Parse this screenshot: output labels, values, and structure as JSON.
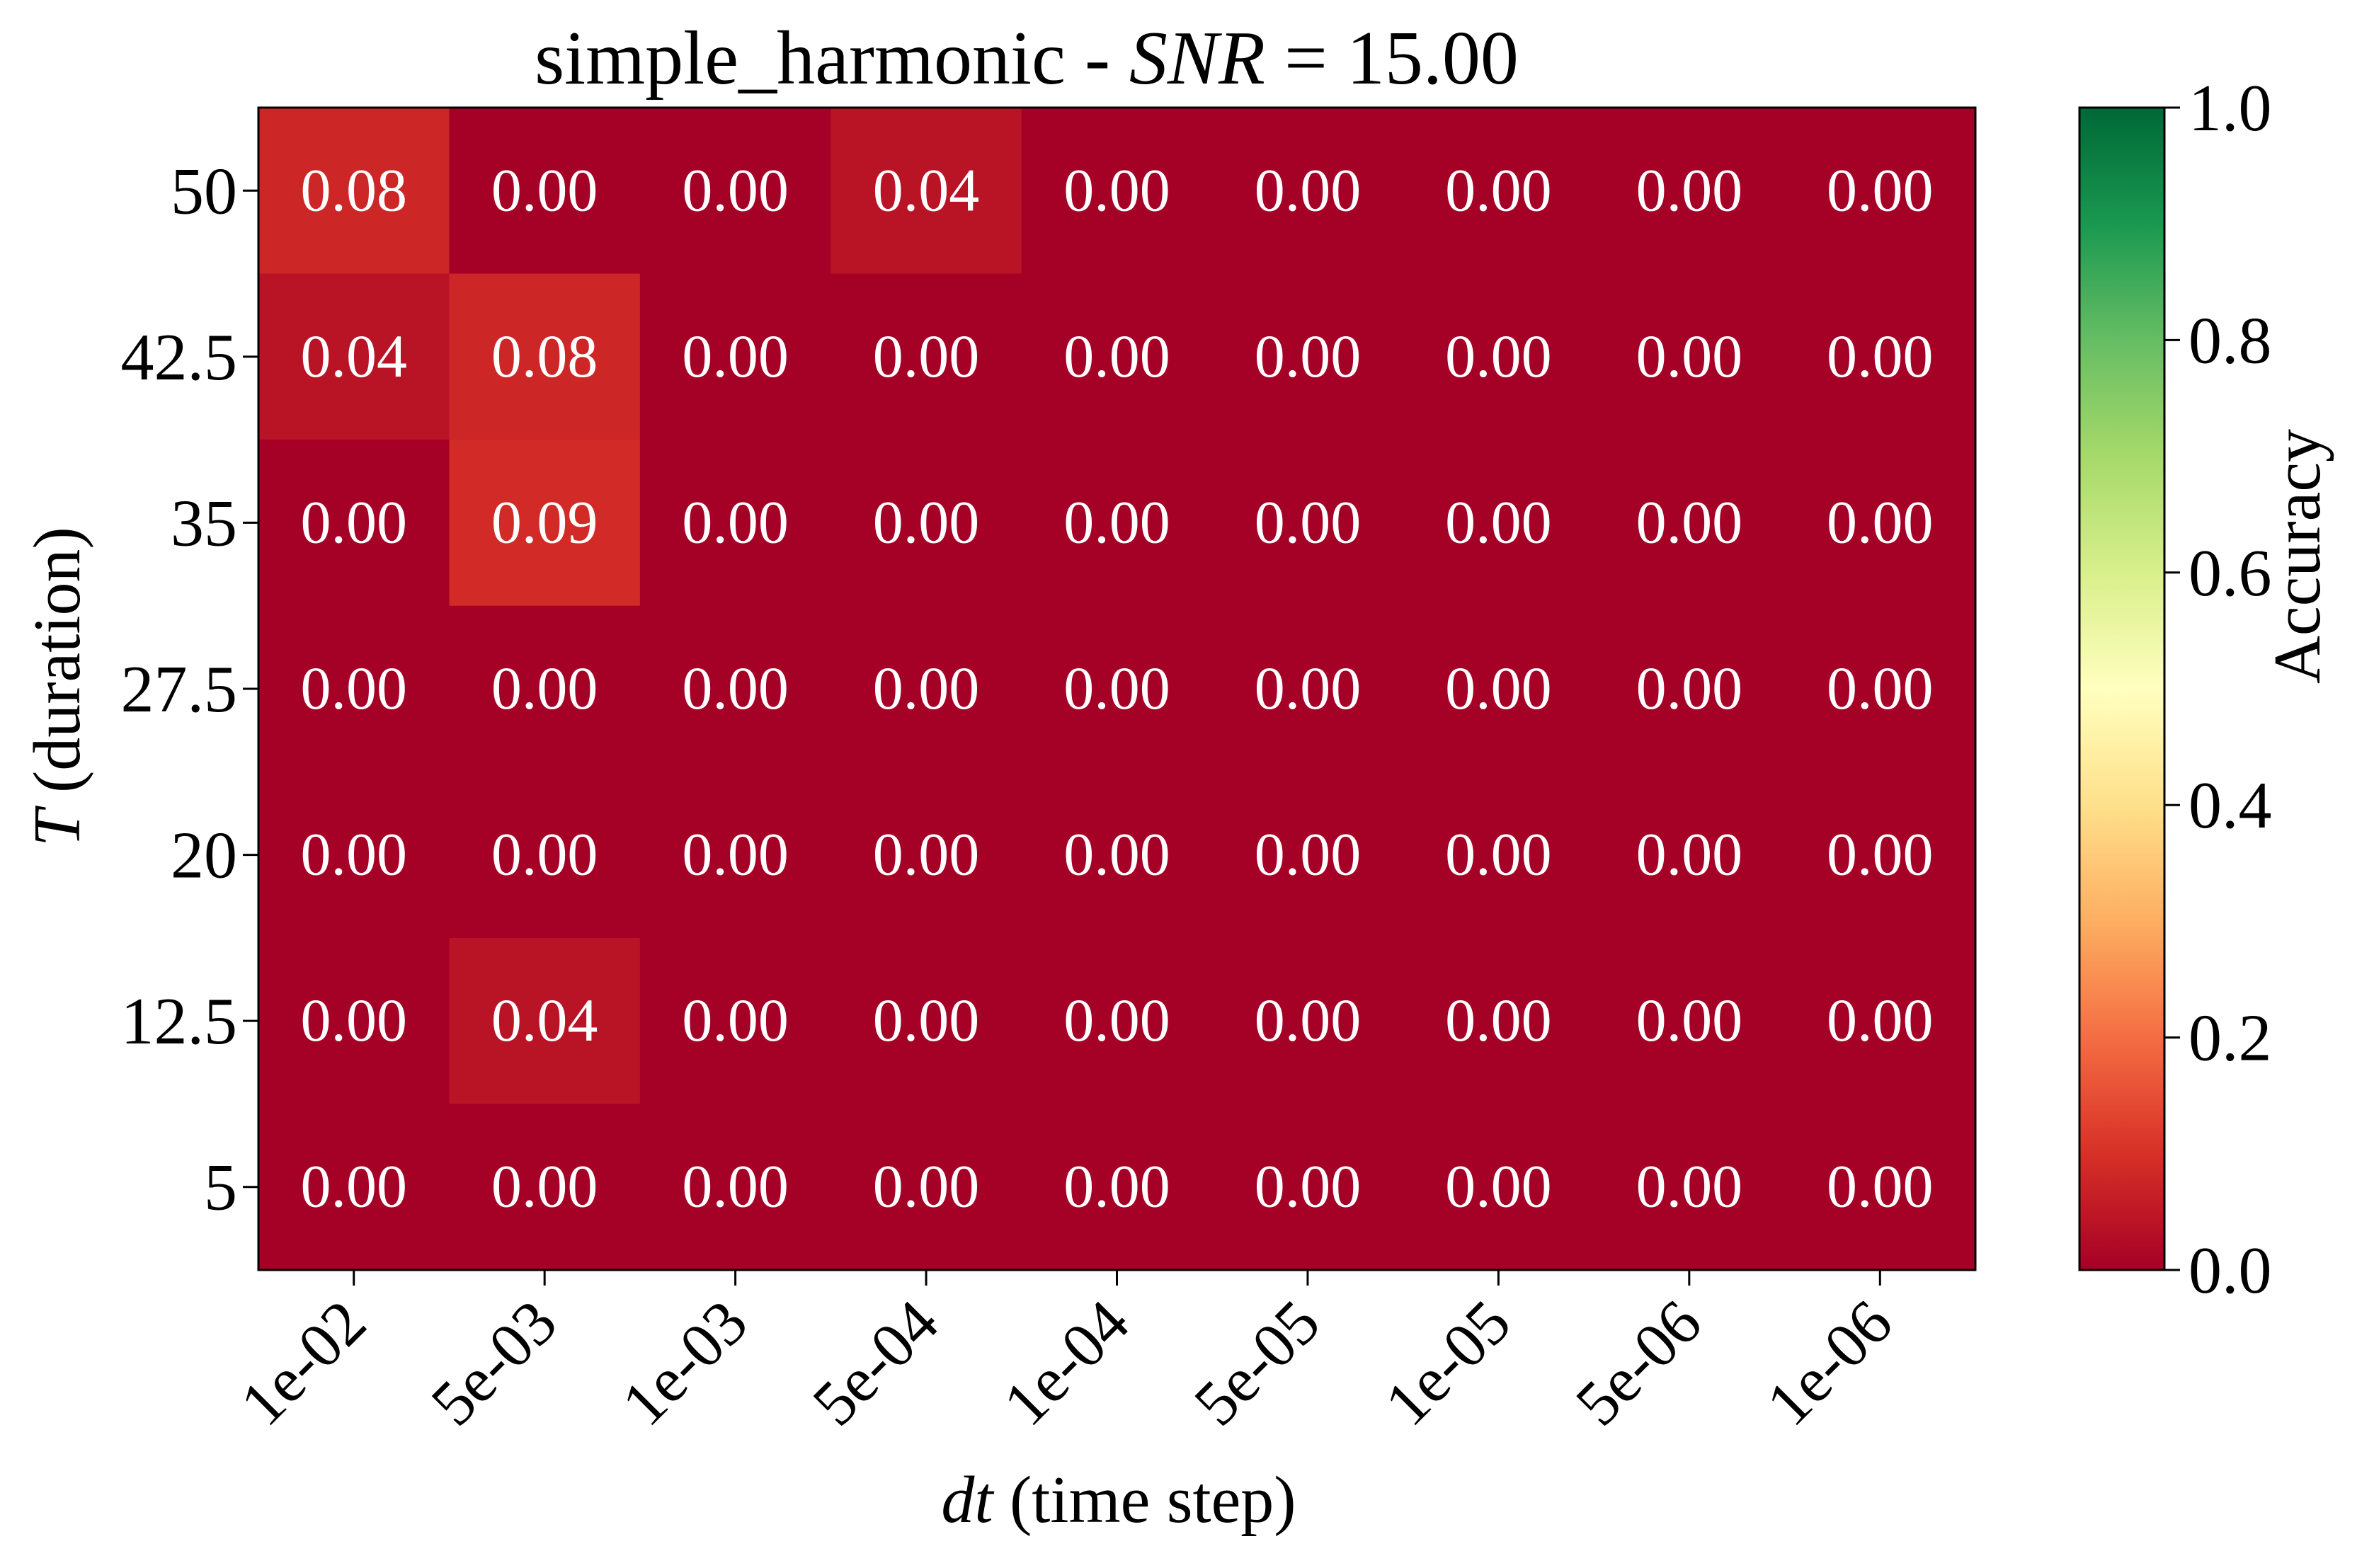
{
  "chart_data": {
    "type": "heatmap",
    "title_prefix": "simple_harmonic - ",
    "title_math": "SNR",
    "title_suffix": " = 15.00",
    "xlabel_math": "dt",
    "xlabel_rest": " (time step)",
    "ylabel_math": "T",
    "ylabel_rest": " (duration)",
    "x_categories": [
      "1e-02",
      "5e-03",
      "1e-03",
      "5e-04",
      "1e-04",
      "5e-05",
      "1e-05",
      "5e-06",
      "1e-06"
    ],
    "y_categories": [
      "50",
      "42.5",
      "35",
      "27.5",
      "20",
      "12.5",
      "5"
    ],
    "values": [
      [
        0.08,
        0.0,
        0.0,
        0.04,
        0.0,
        0.0,
        0.0,
        0.0,
        0.0
      ],
      [
        0.04,
        0.08,
        0.0,
        0.0,
        0.0,
        0.0,
        0.0,
        0.0,
        0.0
      ],
      [
        0.0,
        0.09,
        0.0,
        0.0,
        0.0,
        0.0,
        0.0,
        0.0,
        0.0
      ],
      [
        0.0,
        0.0,
        0.0,
        0.0,
        0.0,
        0.0,
        0.0,
        0.0,
        0.0
      ],
      [
        0.0,
        0.0,
        0.0,
        0.0,
        0.0,
        0.0,
        0.0,
        0.0,
        0.0
      ],
      [
        0.0,
        0.04,
        0.0,
        0.0,
        0.0,
        0.0,
        0.0,
        0.0,
        0.0
      ],
      [
        0.0,
        0.0,
        0.0,
        0.0,
        0.0,
        0.0,
        0.0,
        0.0,
        0.0
      ]
    ],
    "value_format_decimals": 2,
    "colormap": "RdYlGn",
    "vmin": 0.0,
    "vmax": 1.0,
    "colorbar": {
      "label": "Accuracy",
      "ticks": [
        0.0,
        0.2,
        0.4,
        0.6,
        0.8,
        1.0
      ],
      "tick_labels": [
        "0.0",
        "0.2",
        "0.4",
        "0.6",
        "0.8",
        "1.0"
      ]
    },
    "grid": false
  }
}
